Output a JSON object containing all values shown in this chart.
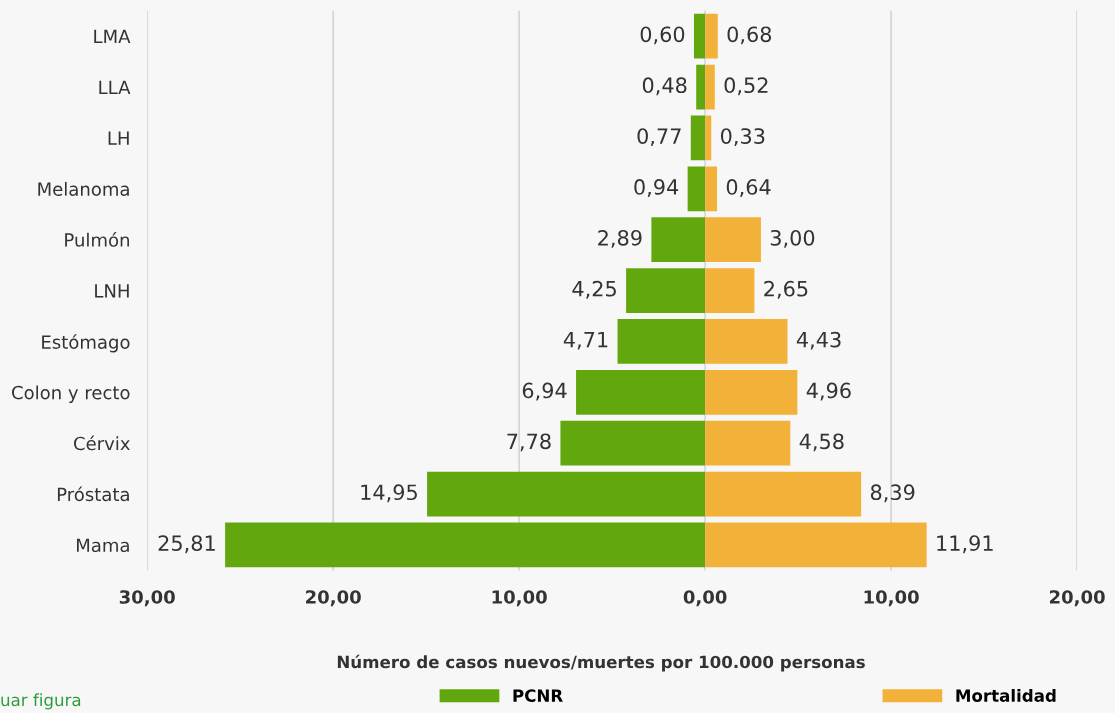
{
  "chart_data": [
    {
      "type": "bar",
      "orientation": "horizontal",
      "categories": [
        "LMA",
        "LLA",
        "LH",
        "Melanoma",
        "Pulmón",
        "LNH",
        "Estómago",
        "Colon y recto",
        "Cérvix",
        "Próstata",
        "Mama"
      ],
      "series": [
        {
          "name": "PCNR",
          "color": "#63a70f",
          "values": [
            0.6,
            0.48,
            0.77,
            0.94,
            2.89,
            4.25,
            4.71,
            6.94,
            7.78,
            14.95,
            25.81
          ],
          "value_labels": [
            "0,60",
            "0,48",
            "0,77",
            "0,94",
            "2,89",
            "4,25",
            "4,71",
            "6,94",
            "7,78",
            "14,95",
            "25,81"
          ]
        }
      ],
      "xlabel": "Número de casos nuevos/muertes por 100.000 personas",
      "xlim": [
        30,
        0
      ],
      "xticks": [
        {
          "value": 30,
          "label": "30,00"
        },
        {
          "value": 20,
          "label": "20,00"
        },
        {
          "value": 10,
          "label": "10,00"
        },
        {
          "value": 0,
          "label": "0,00"
        }
      ],
      "grid": "x",
      "legend": "bottom",
      "annotations": [
        "uar figura"
      ]
    },
    {
      "type": "bar",
      "orientation": "horizontal",
      "categories": [
        null,
        null,
        null,
        null,
        null,
        null,
        null,
        null,
        null,
        null,
        null
      ],
      "series": [
        {
          "name": "Mortalidad",
          "color": "#f2b138",
          "values": [
            0.68,
            0.52,
            0.33,
            0.64,
            3.0,
            2.65,
            4.43,
            4.96,
            4.58,
            8.39,
            11.91
          ],
          "value_labels": [
            "0,68",
            "0,52",
            "0,33",
            "0,64",
            "3,00",
            "2,65",
            "4,43",
            "4,96",
            "4,58",
            "8,39",
            "11,91"
          ]
        }
      ],
      "xlim": [
        0,
        20
      ],
      "xticks": [
        {
          "value": 0,
          "label": null
        },
        {
          "value": 10,
          "label": "10,00"
        },
        {
          "value": 20,
          "label": "20,00"
        }
      ],
      "tick_labels": "x",
      "grid": "x",
      "legend": "bottom"
    }
  ]
}
